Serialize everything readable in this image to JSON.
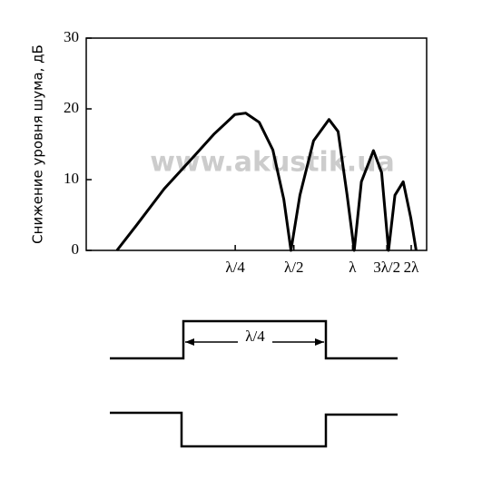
{
  "chart_data": {
    "type": "line",
    "y_label": "Снижение уровня шума, дБ",
    "watermark": "www.akustik.ua",
    "x": [
      0.0618,
      0.0781,
      0.108,
      0.149,
      0.194,
      0.249,
      0.283,
      0.332,
      0.39,
      0.444,
      0.483,
      0.537,
      0.631,
      0.757,
      0.843,
      0.938,
      1.02,
      1.11,
      1.28,
      1.41,
      1.53,
      1.65,
      1.82,
      1.99,
      2.12
    ],
    "series": [
      {
        "color": "#000000",
        "values": [
          0,
          3.6,
          8.7,
          12.9,
          16.4,
          19.2,
          19.4,
          18.1,
          14.2,
          7.2,
          0,
          7.8,
          15.5,
          18.5,
          16.8,
          7.8,
          0,
          9.7,
          14.1,
          11.0,
          0,
          7.8,
          9.7,
          4.6,
          0
        ]
      }
    ],
    "xlim": [
      0.043,
      2.4
    ],
    "xlog": true,
    "xticks": [
      {
        "value": 0.25,
        "label": "λ/4"
      },
      {
        "value": 0.5,
        "label": "λ/2"
      },
      {
        "value": 1,
        "label": "λ"
      },
      {
        "value": 1.5,
        "label": "3λ/2"
      },
      {
        "value": 2,
        "label": "2λ"
      }
    ],
    "ylim": [
      0,
      30
    ],
    "yticks": [
      0,
      10,
      20,
      30
    ]
  },
  "diagram": {
    "label": "λ/4"
  }
}
